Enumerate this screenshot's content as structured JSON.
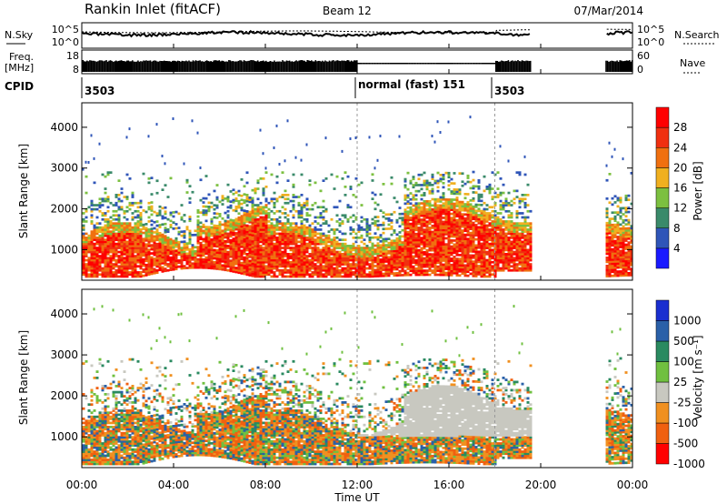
{
  "header": {
    "station": "Rankin Inlet (fitACF)",
    "beam": "Beam 12",
    "date": "07/Mar/2014"
  },
  "noise_panel": {
    "left_label": "N.Sky",
    "right_label": "N.Search",
    "ticks": [
      "10^5",
      "10^0"
    ]
  },
  "freq_panel": {
    "left_label_1": "Freq.",
    "left_label_2": "[MHz]",
    "left_ticks": [
      "18",
      "8"
    ],
    "right_label": "Nave",
    "right_ticks": [
      "60",
      "0"
    ]
  },
  "cpid_panel": {
    "label": "CPID",
    "segments": [
      {
        "start_hour": 0,
        "text": "3503"
      },
      {
        "start_hour": 12,
        "text": "normal (fast) 151"
      },
      {
        "start_hour": 18,
        "text": "3503"
      }
    ]
  },
  "chart_data": [
    {
      "type": "heatmap",
      "name": "power",
      "ylabel": "Slant Range [km]",
      "ylim": [
        250,
        4600
      ],
      "yticks": [
        1000,
        2000,
        3000,
        4000
      ],
      "xlim": [
        0,
        24
      ],
      "colorbar_label": "Power [dB]",
      "colorbar_ticks": [
        "4",
        "8",
        "12",
        "16",
        "20",
        "24",
        "28"
      ],
      "colors": [
        "#1a1aff",
        "#2f55b8",
        "#3a8a6a",
        "#7cc040",
        "#f0b020",
        "#f07010",
        "#f03010",
        "#ff0000"
      ]
    },
    {
      "type": "heatmap",
      "name": "velocity",
      "ylabel": "Slant Range [km]",
      "ylim": [
        250,
        4600
      ],
      "yticks": [
        1000,
        2000,
        3000,
        4000
      ],
      "xlim": [
        0,
        24
      ],
      "xlabel": "Time UT",
      "xticks": [
        "00:00",
        "04:00",
        "08:00",
        "12:00",
        "16:00",
        "20:00",
        "00:00"
      ],
      "colorbar_label": "Velocity [m s⁻¹]",
      "colorbar_ticks": [
        "1000",
        "500",
        "100",
        "25",
        "-25",
        "-100",
        "-500",
        "-1000"
      ],
      "colors": [
        "#1a2fd0",
        "#2a60a8",
        "#2a8a60",
        "#70c040",
        "#c8c8c0",
        "#f09020",
        "#f06010",
        "#ff0000"
      ]
    }
  ]
}
